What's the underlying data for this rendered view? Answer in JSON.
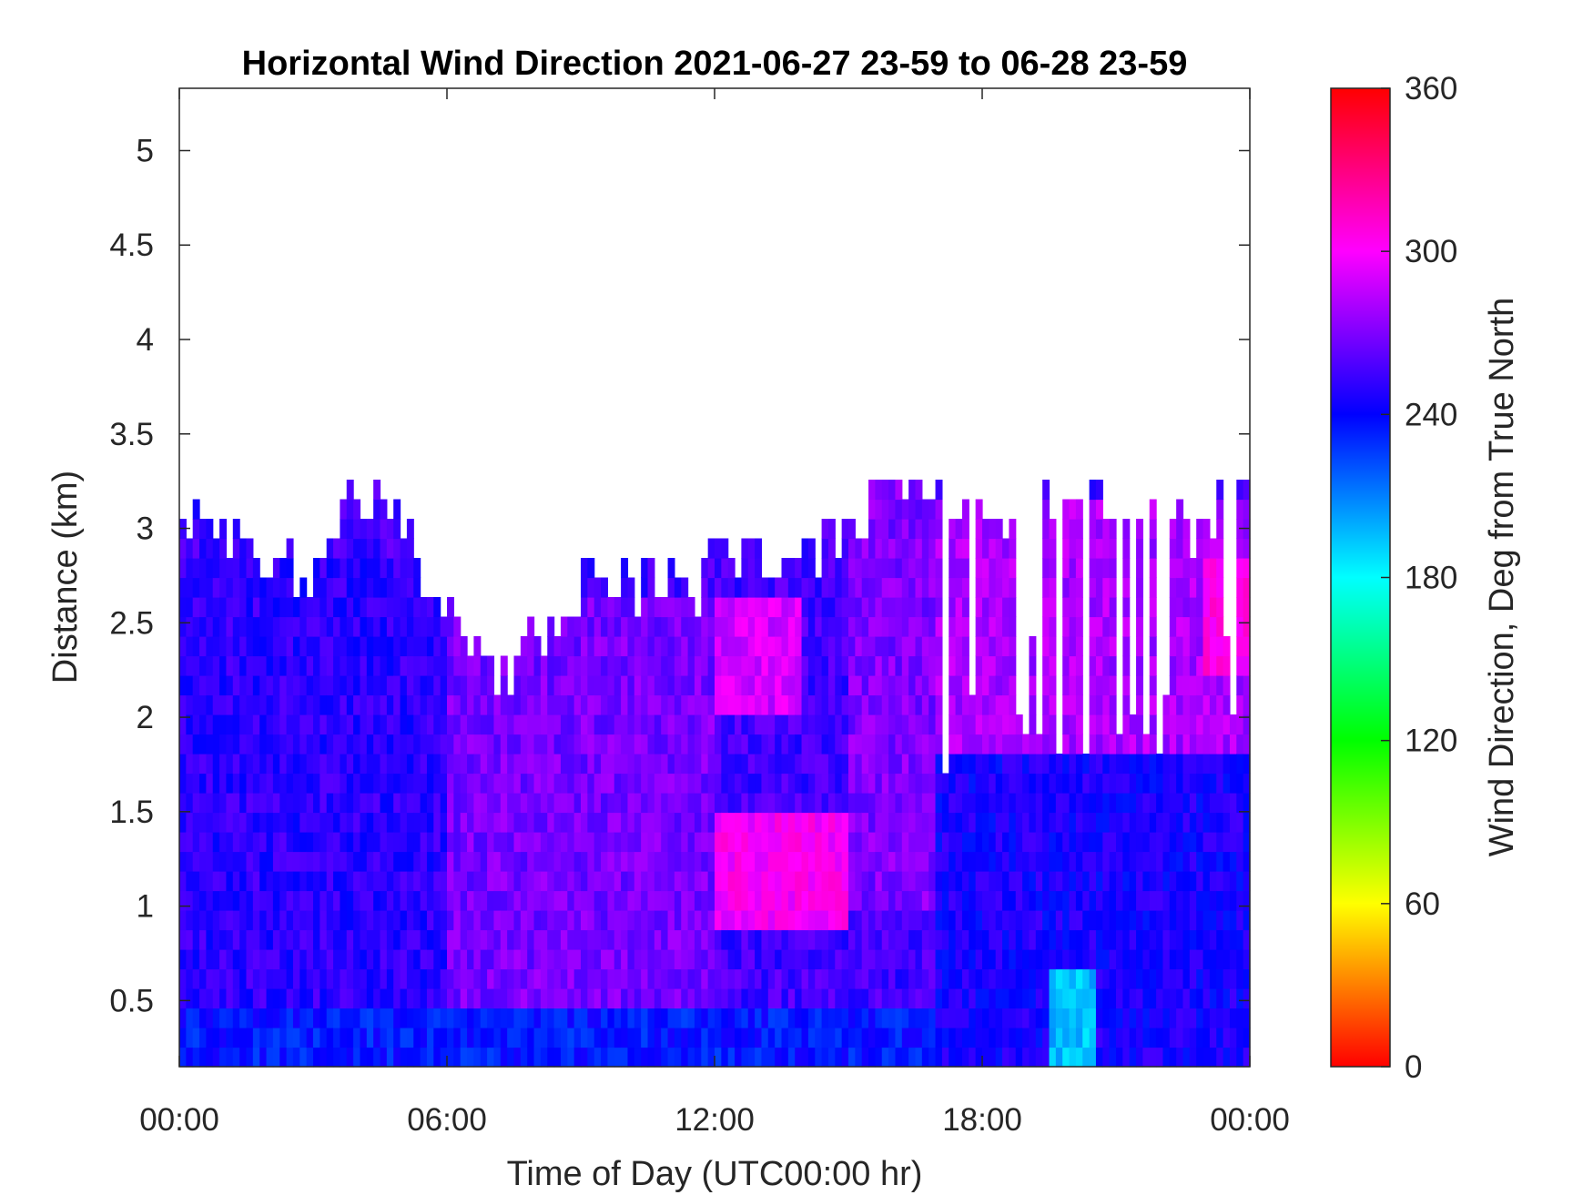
{
  "chart_data": {
    "type": "heatmap",
    "title": "Horizontal Wind Direction 2021-06-27 23-59 to 06-28 23-59",
    "xlabel": "Time of Day (UTC00:00 hr)",
    "ylabel": "Distance (km)",
    "x_ticks": [
      "00:00",
      "06:00",
      "12:00",
      "18:00",
      "00:00"
    ],
    "x_tick_hours": [
      0,
      6,
      12,
      18,
      24
    ],
    "xlim_hours": [
      0,
      24
    ],
    "y_ticks": [
      0.5,
      1,
      1.5,
      2,
      2.5,
      3,
      3.5,
      4,
      4.5,
      5
    ],
    "ylim": [
      0.15,
      5.33
    ],
    "colorbar": {
      "label": "Wind Direction, Deg from True North",
      "ticks": [
        0,
        60,
        120,
        180,
        240,
        300,
        360
      ],
      "range": [
        0,
        360
      ],
      "colormap": [
        "#ff0000",
        "#ffff00",
        "#00ff00",
        "#00ffff",
        "#0000ff",
        "#ff00ff",
        "#ff0000"
      ]
    },
    "data_top_km_by_hour": [
      [
        0,
        3.05
      ],
      [
        1,
        2.9
      ],
      [
        2,
        2.85
      ],
      [
        3,
        2.7
      ],
      [
        4,
        3.2
      ],
      [
        5,
        3.0
      ],
      [
        6,
        2.6
      ],
      [
        6.5,
        2.25
      ],
      [
        7,
        2.25
      ],
      [
        7.5,
        2.3
      ],
      [
        8,
        2.4
      ],
      [
        8.5,
        2.55
      ],
      [
        9,
        2.7
      ],
      [
        10,
        2.75
      ],
      [
        11,
        2.7
      ],
      [
        11.5,
        2.55
      ],
      [
        12,
        2.9
      ],
      [
        13,
        2.85
      ],
      [
        14,
        2.85
      ],
      [
        15,
        2.95
      ],
      [
        16,
        3.3
      ],
      [
        17,
        3.2
      ],
      [
        18,
        3.1
      ],
      [
        19,
        3.1
      ],
      [
        20,
        3.2
      ],
      [
        21,
        3.1
      ],
      [
        22,
        3.0
      ],
      [
        23,
        3.0
      ],
      [
        24,
        3.3
      ]
    ],
    "direction_regions_deg": [
      {
        "hours": [
          0,
          24
        ],
        "km": [
          0.15,
          0.5
        ],
        "direction": 235
      },
      {
        "hours": [
          0,
          6
        ],
        "km": [
          0.5,
          2.8
        ],
        "direction": 250
      },
      {
        "hours": [
          6,
          12
        ],
        "km": [
          0.5,
          2.6
        ],
        "direction": 268
      },
      {
        "hours": [
          12,
          15
        ],
        "km": [
          0.9,
          1.5
        ],
        "direction": 300
      },
      {
        "hours": [
          12,
          14
        ],
        "km": [
          2.0,
          2.6
        ],
        "direction": 290
      },
      {
        "hours": [
          15,
          17
        ],
        "km": [
          1.0,
          3.3
        ],
        "direction": 270
      },
      {
        "hours": [
          17,
          24
        ],
        "km": [
          0.15,
          1.8
        ],
        "direction": 245
      },
      {
        "hours": [
          17,
          24
        ],
        "km": [
          1.8,
          3.2
        ],
        "direction": 280
      },
      {
        "hours": [
          19.5,
          20.5
        ],
        "km": [
          0.15,
          0.7
        ],
        "direction": 195
      },
      {
        "hours": [
          23,
          24
        ],
        "km": [
          2.2,
          2.8
        ],
        "direction": 305
      }
    ]
  }
}
